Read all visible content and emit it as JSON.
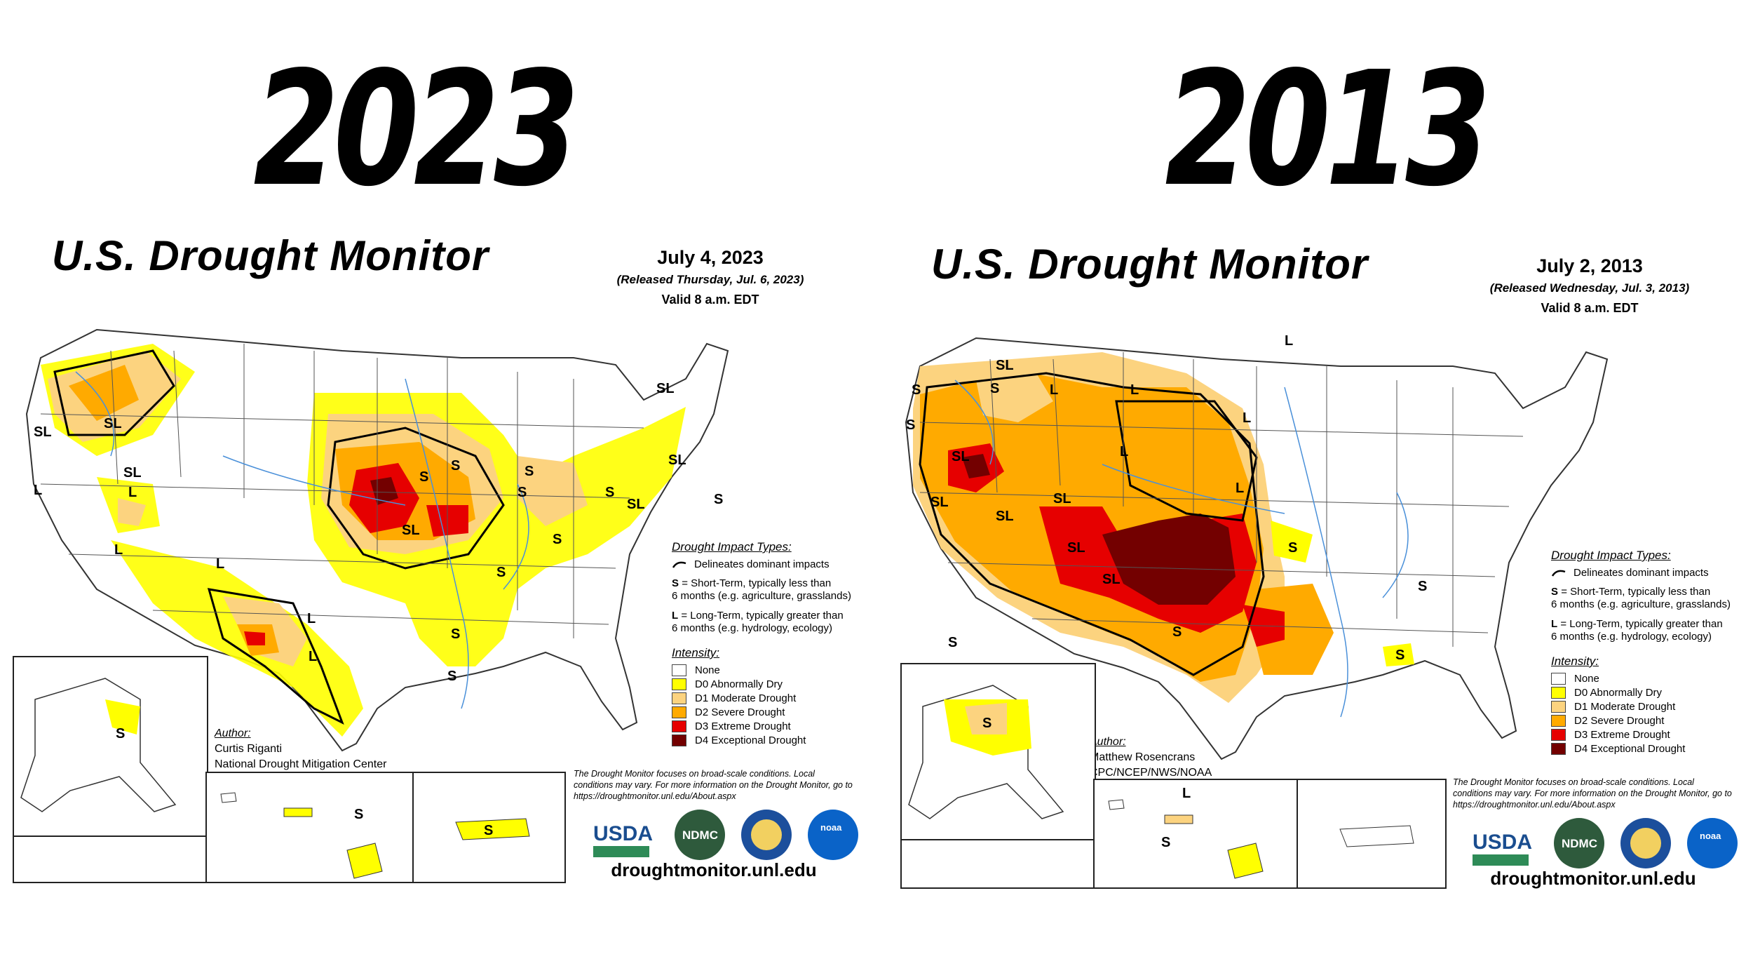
{
  "years": {
    "left": "2023",
    "right": "2013"
  },
  "maps": [
    {
      "title": "U.S. Drought Monitor",
      "date": "July 4, 2023",
      "released": "(Released Thursday, Jul. 6, 2023)",
      "valid": "Valid 8 a.m. EDT",
      "author_heading": "Author:",
      "author_name": "Curtis Riganti",
      "author_org": "National Drought Mitigation Center",
      "impact_labels": [
        "SL",
        "SL",
        "L",
        "SL",
        "L",
        "S",
        "S",
        "S",
        "S",
        "SL",
        "S",
        "S",
        "SL",
        "L",
        "L",
        "L",
        "S",
        "S",
        "SL",
        "S",
        "L",
        "S",
        "SL"
      ]
    },
    {
      "title": "U.S. Drought Monitor",
      "date": "July 2, 2013",
      "released": "(Released Wednesday, Jul. 3, 2013)",
      "valid": "Valid 8 a.m. EDT",
      "author_heading": "Author:",
      "author_name": "Matthew Rosencrans",
      "author_org": "CPC/NCEP/NWS/NOAA",
      "impact_labels": [
        "S",
        "S",
        "SL",
        "L",
        "S",
        "SL",
        "L",
        "L",
        "L",
        "SL",
        "SL",
        "SL",
        "L",
        "SL",
        "S",
        "SL",
        "S",
        "S",
        "S",
        "L",
        "S"
      ]
    }
  ],
  "legend": {
    "impact_heading": "Drought Impact Types:",
    "delineates": "Delineates dominant impacts",
    "short_term_key": "S",
    "short_term": "= Short-Term, typically less than",
    "short_term_2": "6 months (e.g. agriculture, grasslands)",
    "long_term_key": "L",
    "long_term": "= Long-Term, typically greater than",
    "long_term_2": "6 months (e.g. hydrology, ecology)",
    "intensity_heading": "Intensity:",
    "categories": [
      {
        "label": "None",
        "color": "#ffffff"
      },
      {
        "label": "D0 Abnormally Dry",
        "color": "#ffff00"
      },
      {
        "label": "D1 Moderate Drought",
        "color": "#fcd37f"
      },
      {
        "label": "D2 Severe Drought",
        "color": "#ffaa00"
      },
      {
        "label": "D3 Extreme Drought",
        "color": "#e60000"
      },
      {
        "label": "D4 Exceptional Drought",
        "color": "#730000"
      }
    ]
  },
  "footer": {
    "disclaimer": "The Drought Monitor focuses on broad-scale conditions. Local conditions may vary. For more information on the Drought Monitor, go to https://droughtmonitor.unl.edu/About.aspx",
    "logos": [
      "USDA",
      "NDMC",
      "noaa"
    ],
    "website": "droughtmonitor.unl.edu"
  }
}
